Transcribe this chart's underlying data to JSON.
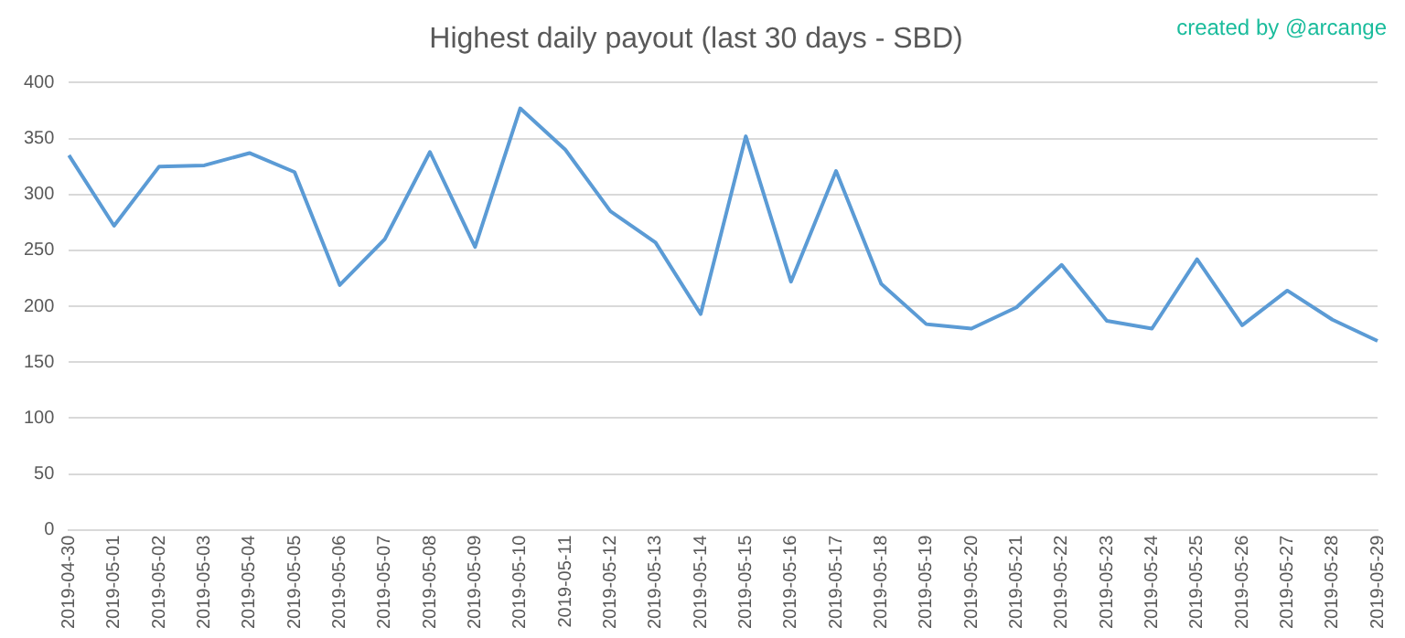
{
  "chart_data": {
    "type": "line",
    "title": "Highest daily payout (last 30 days - SBD)",
    "categories": [
      "2019-04-30",
      "2019-05-01",
      "2019-05-02",
      "2019-05-03",
      "2019-05-04",
      "2019-05-05",
      "2019-05-06",
      "2019-05-07",
      "2019-05-08",
      "2019-05-09",
      "2019-05-10",
      "2019-05-11",
      "2019-05-12",
      "2019-05-13",
      "2019-05-14",
      "2019-05-15",
      "2019-05-16",
      "2019-05-17",
      "2019-05-18",
      "2019-05-19",
      "2019-05-20",
      "2019-05-21",
      "2019-05-22",
      "2019-05-23",
      "2019-05-24",
      "2019-05-25",
      "2019-05-26",
      "2019-05-27",
      "2019-05-28",
      "2019-05-29"
    ],
    "series": [
      {
        "color": "#5b9bd5",
        "values": [
          335,
          272,
          325,
          326,
          337,
          320,
          219,
          260,
          338,
          253,
          377,
          340,
          285,
          257,
          193,
          352,
          222,
          321,
          220,
          184,
          180,
          199,
          237,
          187,
          180,
          242,
          183,
          214,
          188,
          169
        ]
      }
    ],
    "ylim": [
      0,
      400
    ],
    "yticks": [
      0,
      50,
      100,
      150,
      200,
      250,
      300,
      350,
      400
    ],
    "grid": "y",
    "legend": false,
    "marker": "none",
    "line_style": "solid",
    "annotations": [
      "created by @arcange"
    ]
  }
}
